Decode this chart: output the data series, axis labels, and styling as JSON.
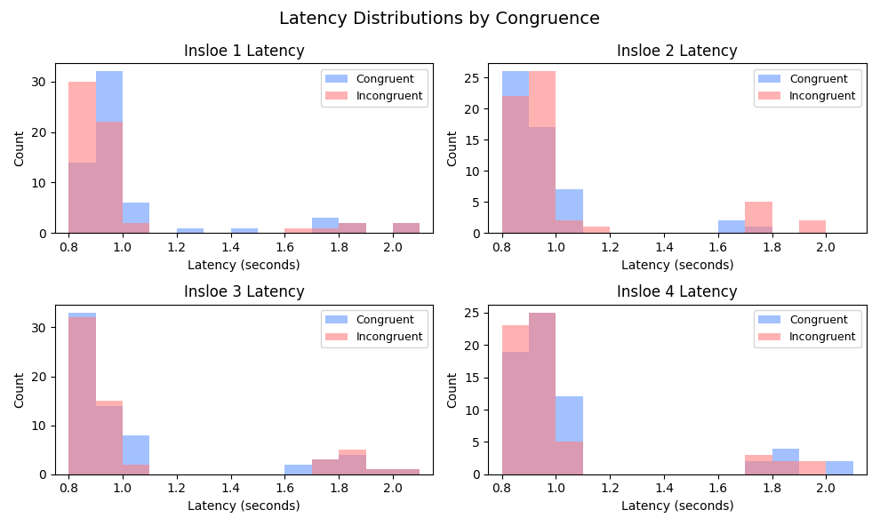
{
  "title": "Latency Distributions by Congruence",
  "subplots": [
    {
      "title": "Insloe 1 Latency",
      "bins": [
        0.8,
        0.9,
        1.0,
        1.1,
        1.2,
        1.3,
        1.4,
        1.5,
        1.6,
        1.7,
        1.8,
        1.9,
        2.0,
        2.1
      ],
      "congruent": [
        14,
        32,
        6,
        0,
        1,
        0,
        1,
        0,
        0,
        3,
        2,
        0,
        2
      ],
      "incongruent": [
        30,
        22,
        2,
        0,
        0,
        0,
        0,
        0,
        1,
        1,
        2,
        0,
        2
      ]
    },
    {
      "title": "Insloe 2 Latency",
      "bins": [
        0.8,
        0.9,
        1.0,
        1.1,
        1.2,
        1.3,
        1.4,
        1.5,
        1.6,
        1.7,
        1.8,
        1.9,
        2.0,
        2.1
      ],
      "congruent": [
        26,
        17,
        7,
        0,
        0,
        0,
        0,
        0,
        2,
        1,
        0,
        0,
        0
      ],
      "incongruent": [
        22,
        26,
        2,
        1,
        0,
        0,
        0,
        0,
        0,
        5,
        0,
        2,
        0
      ]
    },
    {
      "title": "Insloe 3 Latency",
      "bins": [
        0.8,
        0.9,
        1.0,
        1.1,
        1.2,
        1.3,
        1.4,
        1.5,
        1.6,
        1.7,
        1.8,
        1.9,
        2.0,
        2.1
      ],
      "congruent": [
        33,
        14,
        8,
        0,
        0,
        0,
        0,
        0,
        2,
        3,
        4,
        1,
        1
      ],
      "incongruent": [
        32,
        15,
        2,
        0,
        0,
        0,
        0,
        0,
        0,
        3,
        5,
        1,
        1
      ]
    },
    {
      "title": "Insloe 4 Latency",
      "bins": [
        0.8,
        0.9,
        1.0,
        1.1,
        1.2,
        1.3,
        1.4,
        1.5,
        1.6,
        1.7,
        1.8,
        1.9,
        2.0,
        2.1
      ],
      "congruent": [
        19,
        25,
        12,
        0,
        0,
        0,
        0,
        0,
        0,
        2,
        4,
        0,
        2
      ],
      "incongruent": [
        23,
        25,
        5,
        0,
        0,
        0,
        0,
        0,
        0,
        3,
        2,
        2,
        0
      ]
    }
  ],
  "xlabel": "Latency (seconds)",
  "ylabel": "Count",
  "congruent_color": "#6699FF",
  "incongruent_color": "#FF8080",
  "alpha": 0.6,
  "bin_width": 0.1
}
